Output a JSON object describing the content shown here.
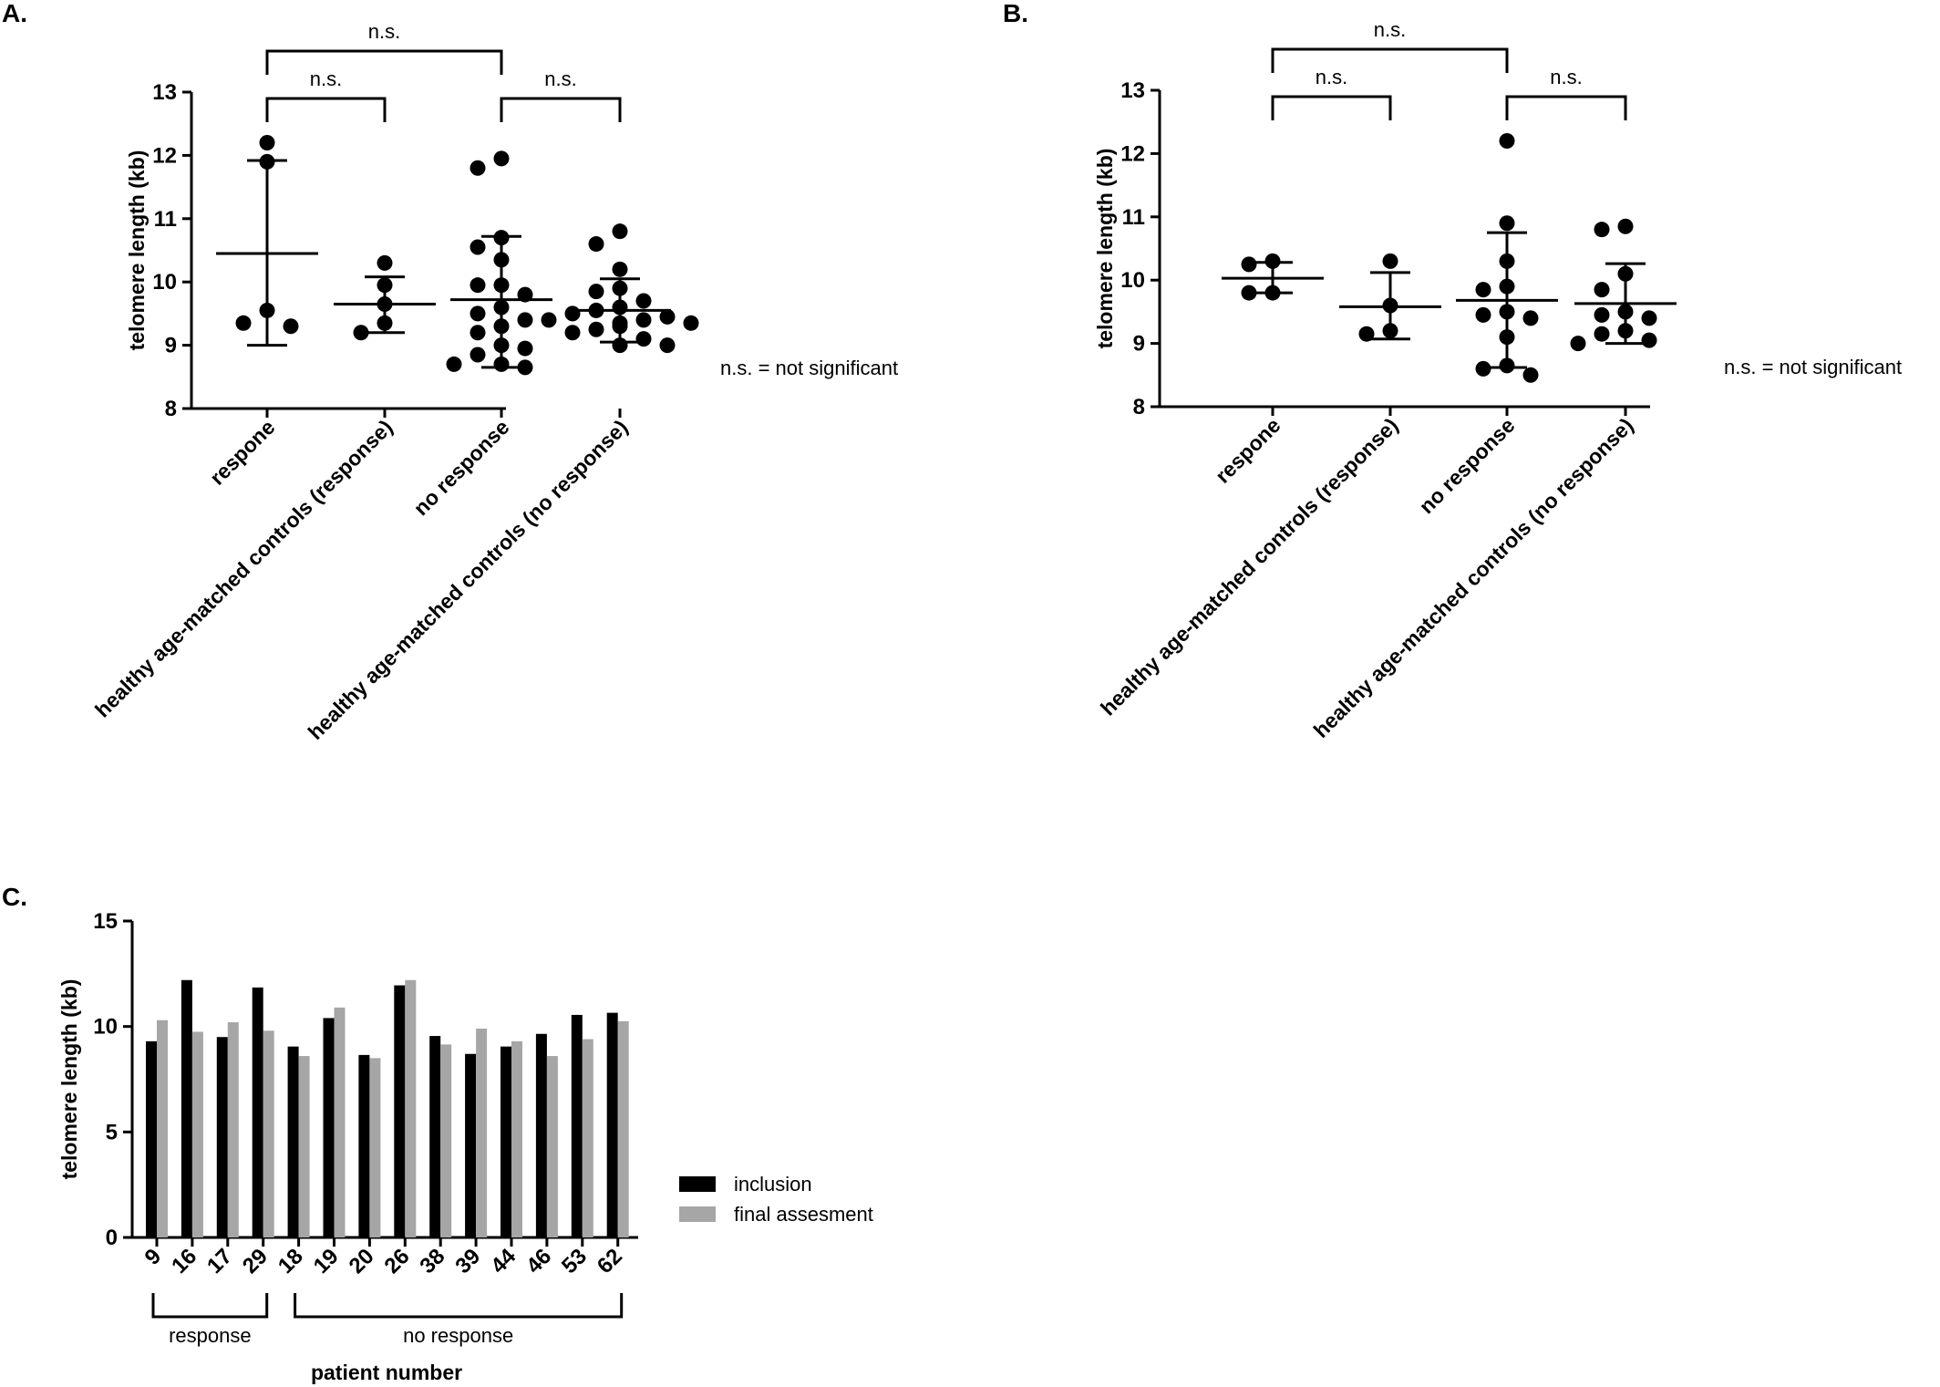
{
  "chart_data": [
    {
      "panel": "A.",
      "type": "scatter",
      "ylabel": "telomere length (kb)",
      "ylim": [
        8,
        13
      ],
      "yticks": [
        8,
        9,
        10,
        11,
        12,
        13
      ],
      "categories": [
        "respone",
        "healthy age-matched controls (response)",
        "no response",
        "healthy age-matched controls (no response)"
      ],
      "groups": [
        {
          "points": [
            12.2,
            11.9,
            9.55,
            9.3,
            9.35
          ],
          "mean": 10.45,
          "sd_low": 9.0,
          "sd_high": 11.92
        },
        {
          "points": [
            10.3,
            9.95,
            9.65,
            9.35,
            9.2
          ],
          "mean": 9.65,
          "sd_low": 9.2,
          "sd_high": 10.08
        },
        {
          "points": [
            11.95,
            11.8,
            10.7,
            10.55,
            10.35,
            9.95,
            9.95,
            9.8,
            9.6,
            9.5,
            9.4,
            9.3,
            9.2,
            9.0,
            8.95,
            8.85,
            8.7,
            8.7,
            8.65
          ],
          "mean": 9.72,
          "sd_low": 8.65,
          "sd_high": 10.72
        },
        {
          "points": [
            10.8,
            10.6,
            10.2,
            9.9,
            9.85,
            9.7,
            9.6,
            9.55,
            9.5,
            9.45,
            9.4,
            9.4,
            9.35,
            9.35,
            9.3,
            9.25,
            9.2,
            9.1,
            9.0,
            9.0
          ],
          "mean": 9.55,
          "sd_low": 9.05,
          "sd_high": 10.05
        }
      ],
      "brackets": [
        {
          "from": 0,
          "to": 2,
          "level": 2,
          "label": "n.s."
        },
        {
          "from": 0,
          "to": 1,
          "level": 1,
          "label": "n.s."
        },
        {
          "from": 2,
          "to": 3,
          "level": 1,
          "label": "n.s."
        }
      ],
      "note": "n.s. = not significant"
    },
    {
      "panel": "B.",
      "type": "scatter",
      "ylabel": "telomere length (kb)",
      "ylim": [
        8,
        13
      ],
      "yticks": [
        8,
        9,
        10,
        11,
        12,
        13
      ],
      "categories": [
        "respone",
        "healthy age-matched controls (response)",
        "no response",
        "healthy age-matched controls (no response)"
      ],
      "groups": [
        {
          "points": [
            10.3,
            10.25,
            9.8,
            9.8
          ],
          "mean": 10.03,
          "sd_low": 9.8,
          "sd_high": 10.28
        },
        {
          "points": [
            10.3,
            9.6,
            9.2,
            9.15
          ],
          "mean": 9.58,
          "sd_low": 9.07,
          "sd_high": 10.12
        },
        {
          "points": [
            12.2,
            10.9,
            10.3,
            9.9,
            9.85,
            9.5,
            9.45,
            9.4,
            9.1,
            8.65,
            8.6,
            8.5
          ],
          "mean": 9.68,
          "sd_low": 8.62,
          "sd_high": 10.75
        },
        {
          "points": [
            10.85,
            10.8,
            10.1,
            9.85,
            9.5,
            9.45,
            9.4,
            9.2,
            9.15,
            9.05,
            9.0
          ],
          "mean": 9.63,
          "sd_low": 9.0,
          "sd_high": 10.26
        }
      ],
      "brackets": [
        {
          "from": 0,
          "to": 2,
          "level": 2,
          "label": "n.s."
        },
        {
          "from": 0,
          "to": 1,
          "level": 1,
          "label": "n.s."
        },
        {
          "from": 2,
          "to": 3,
          "level": 1,
          "label": "n.s."
        }
      ],
      "note": "n.s. = not significant"
    },
    {
      "panel": "C.",
      "type": "bar",
      "ylabel": "telomere length (kb)",
      "xlabel": "patient number",
      "ylim": [
        0,
        15
      ],
      "yticks": [
        0,
        5,
        10,
        15
      ],
      "categories": [
        "9",
        "16",
        "17",
        "29",
        "18",
        "19",
        "20",
        "26",
        "38",
        "39",
        "44",
        "46",
        "53",
        "62"
      ],
      "series": [
        {
          "name": "inclusion",
          "color": "#000000",
          "values": [
            9.3,
            12.2,
            9.5,
            11.85,
            9.05,
            10.4,
            8.65,
            11.95,
            9.55,
            8.7,
            9.05,
            9.65,
            10.55,
            10.65
          ]
        },
        {
          "name": "final assesment",
          "color": "#a6a6a6",
          "values": [
            10.3,
            9.75,
            10.2,
            9.8,
            8.6,
            10.9,
            8.5,
            12.2,
            9.15,
            9.9,
            9.3,
            8.6,
            9.4,
            10.25
          ]
        }
      ],
      "groups": [
        {
          "label": "response",
          "from": 0,
          "to": 3
        },
        {
          "label": "no response",
          "from": 4,
          "to": 13
        }
      ]
    }
  ]
}
